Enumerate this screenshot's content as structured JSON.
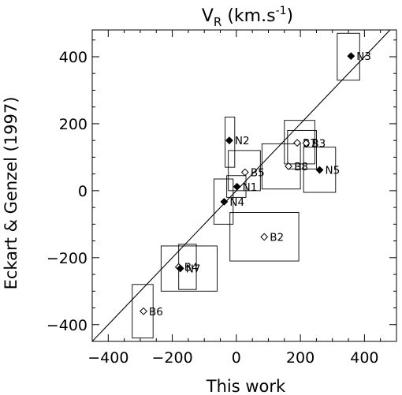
{
  "chart_data": {
    "type": "scatter",
    "title": "V_R (km.s^-1)",
    "title_main": "V",
    "title_sub": "R",
    "title_rest": " (km.s",
    "title_sup": "-1",
    "title_close": ")",
    "xlabel": "This work",
    "ylabel": "Eckart & Genzel (1997)",
    "xlim": [
      -450,
      500
    ],
    "ylim": [
      -450,
      480
    ],
    "xticks": [
      -400,
      -200,
      0,
      200,
      400
    ],
    "yticks": [
      -400,
      -200,
      0,
      200,
      400
    ],
    "reference_line": "y = x",
    "grid": false,
    "points": [
      {
        "label": "N3",
        "x": 358,
        "y": 402,
        "filled": true,
        "x_range": [
          315,
          385
        ],
        "y_range": [
          330,
          470
        ]
      },
      {
        "label": "N2",
        "x": -22,
        "y": 150,
        "filled": true,
        "x_range": [
          -35,
          -5
        ],
        "y_range": [
          70,
          220
        ]
      },
      {
        "label": "B7",
        "x": 190,
        "y": 143,
        "filled": false,
        "x_range": [
          150,
          245
        ],
        "y_range": [
          80,
          210
        ]
      },
      {
        "label": "B3",
        "x": 218,
        "y": 142,
        "filled": false,
        "x_range": [
          160,
          250
        ],
        "y_range": [
          65,
          180
        ]
      },
      {
        "label": "B8",
        "x": 163,
        "y": 73,
        "filled": false,
        "x_range": [
          80,
          200
        ],
        "y_range": [
          5,
          140
        ]
      },
      {
        "label": "N5",
        "x": 260,
        "y": 62,
        "filled": true,
        "x_range": [
          210,
          310
        ],
        "y_range": [
          -5,
          130
        ]
      },
      {
        "label": "B5",
        "x": 27,
        "y": 55,
        "filled": false,
        "x_range": [
          -25,
          75
        ],
        "y_range": [
          0,
          120
        ]
      },
      {
        "label": "N1",
        "x": 2,
        "y": 12,
        "filled": true,
        "x_range": [
          -30,
          30
        ],
        "y_range": [
          -20,
          45
        ]
      },
      {
        "label": "N4",
        "x": -38,
        "y": -33,
        "filled": true,
        "x_range": [
          -70,
          -10
        ],
        "y_range": [
          -100,
          35
        ]
      },
      {
        "label": "B2",
        "x": 87,
        "y": -138,
        "filled": false,
        "x_range": [
          -20,
          195
        ],
        "y_range": [
          -210,
          -65
        ]
      },
      {
        "label": "B4",
        "x": -180,
        "y": -228,
        "filled": false,
        "x_range": [
          -235,
          -60
        ],
        "y_range": [
          -300,
          -165
        ]
      },
      {
        "label": "N7",
        "x": -175,
        "y": -232,
        "filled": true,
        "x_range": [
          -180,
          -125
        ],
        "y_range": [
          -295,
          -160
        ]
      },
      {
        "label": "B6",
        "x": -290,
        "y": -360,
        "filled": false,
        "x_range": [
          -325,
          -260
        ],
        "y_range": [
          -440,
          -280
        ]
      }
    ]
  }
}
